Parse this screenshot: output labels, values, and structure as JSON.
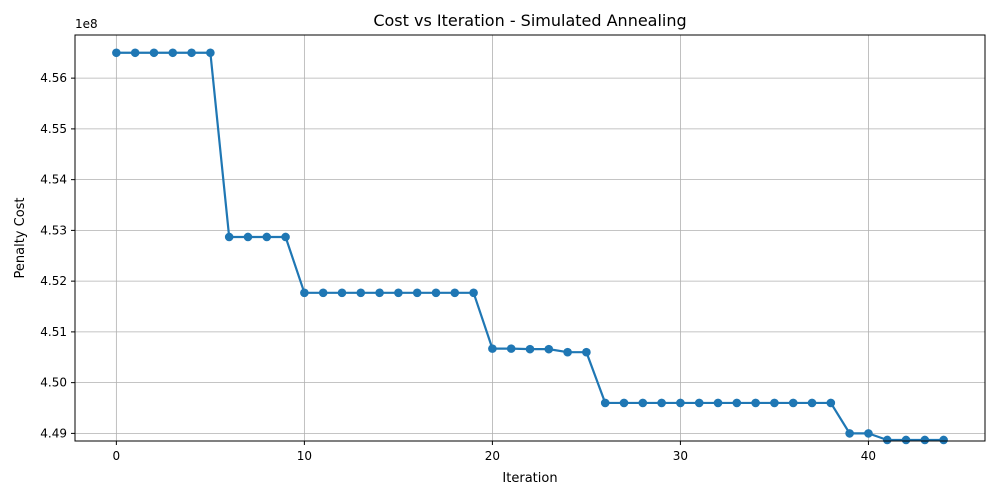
{
  "chart_data": {
    "type": "line",
    "title": "Cost vs Iteration - Simulated Annealing",
    "xlabel": "Iteration",
    "ylabel": "Penalty Cost",
    "y_offset_label": "1e8",
    "xlim": [
      -2.2,
      46.2
    ],
    "ylim": [
      4.4885,
      4.5685
    ],
    "x_ticks": [
      0,
      10,
      20,
      30,
      40
    ],
    "y_ticks": [
      4.49,
      4.5,
      4.51,
      4.52,
      4.53,
      4.54,
      4.55,
      4.56
    ],
    "y_tick_labels": [
      "4.49",
      "4.50",
      "4.51",
      "4.52",
      "4.53",
      "4.54",
      "4.55",
      "4.56"
    ],
    "grid": true,
    "series": [
      {
        "color": "#1f77b4",
        "marker": "circle",
        "x": [
          0,
          1,
          2,
          3,
          4,
          5,
          6,
          7,
          8,
          9,
          10,
          11,
          12,
          13,
          14,
          15,
          16,
          17,
          18,
          19,
          20,
          21,
          22,
          23,
          24,
          25,
          26,
          27,
          28,
          29,
          30,
          31,
          32,
          33,
          34,
          35,
          36,
          37,
          38,
          39,
          40,
          41,
          42,
          43,
          44
        ],
        "y": [
          4.565,
          4.565,
          4.565,
          4.565,
          4.565,
          4.565,
          4.5287,
          4.5287,
          4.5287,
          4.5287,
          4.5177,
          4.5177,
          4.5177,
          4.5177,
          4.5177,
          4.5177,
          4.5177,
          4.5177,
          4.5177,
          4.5177,
          4.5067,
          4.5067,
          4.5066,
          4.5066,
          4.506,
          4.506,
          4.496,
          4.496,
          4.496,
          4.496,
          4.496,
          4.496,
          4.496,
          4.496,
          4.496,
          4.496,
          4.496,
          4.496,
          4.496,
          4.49,
          4.49,
          4.4887,
          4.4887,
          4.4887,
          4.4887
        ]
      }
    ]
  }
}
